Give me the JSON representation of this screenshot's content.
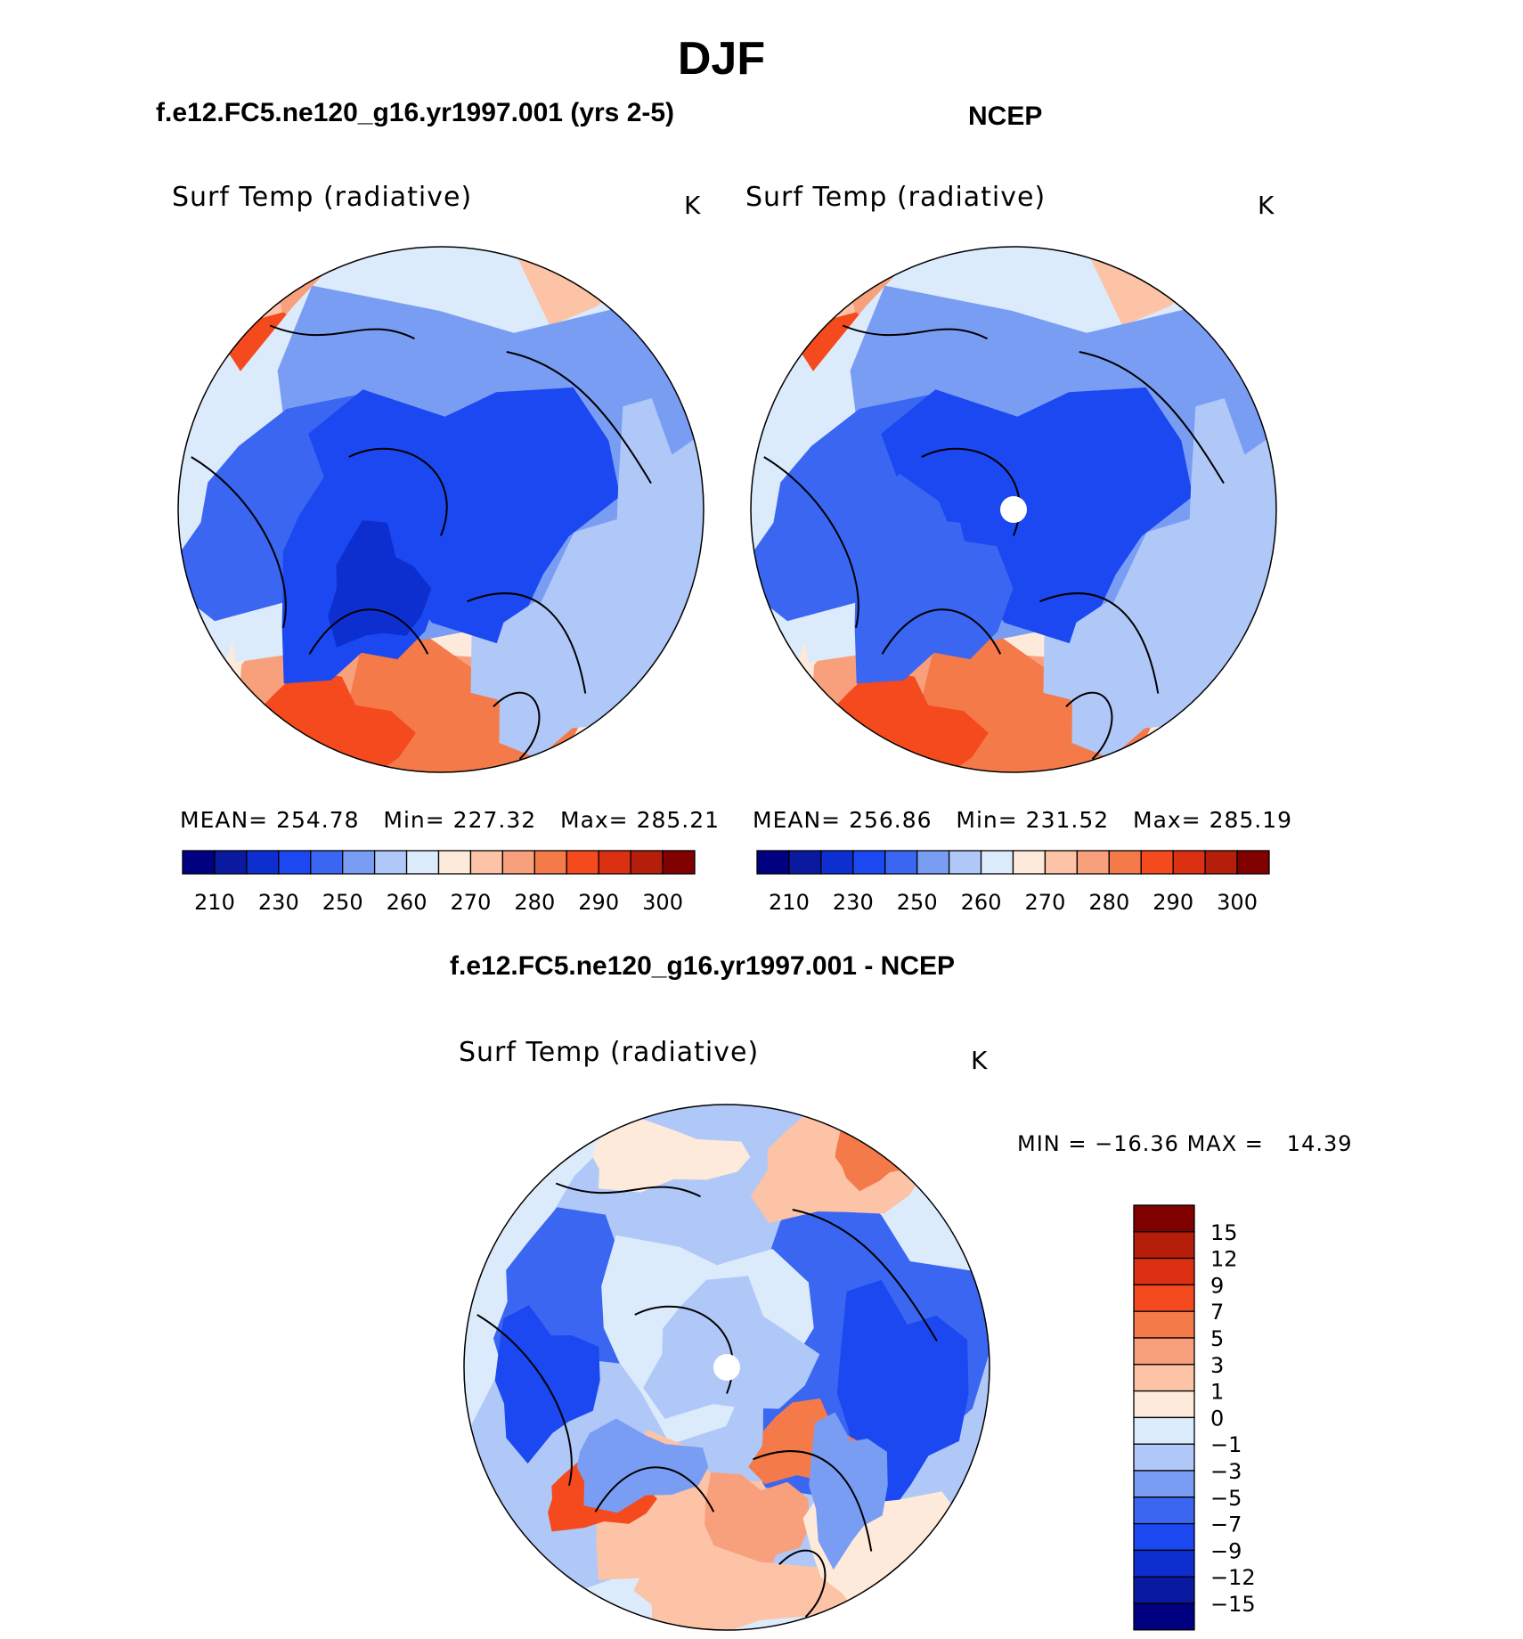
{
  "season": "DJF",
  "left_title": "f.e12.FC5.ne120_g16.yr1997.001 (yrs 2-5)",
  "right_title": "NCEP",
  "diff_title": "f.e12.FC5.ne120_g16.yr1997.001 - NCEP",
  "colors": {
    "abs_levels": [
      "#000080",
      "#0a1aa0",
      "#0e2fd0",
      "#1b48f0",
      "#3a66f2",
      "#7a9df4",
      "#b0c8f8",
      "#dcebfc",
      "#feeadb",
      "#fcc3a6",
      "#f8a07c",
      "#f47a4a",
      "#f44a1e",
      "#dc3012",
      "#b41e0a",
      "#800000"
    ],
    "diff_levels": [
      "#000080",
      "#0a1aa0",
      "#0e2fd0",
      "#1b48f0",
      "#3a66f2",
      "#7a9df4",
      "#b0c8f8",
      "#dcebfc",
      "#feeadb",
      "#fcc3a6",
      "#f8a07c",
      "#f47a4a",
      "#f44a1e",
      "#dc3012",
      "#b41e0a",
      "#800000"
    ]
  },
  "chart_data": [
    {
      "type": "heatmap",
      "projection": "north polar stereographic",
      "title": "f.e12.FC5.ne120_g16.yr1997.001 (yrs 2-5)",
      "variable": "Surf Temp (radiative)",
      "units": "K",
      "mean_label": "MEAN=",
      "mean": "254.78",
      "min_label": "Min=",
      "min": "227.32",
      "max_label": "Max=",
      "max": "285.21",
      "colorbar_ticks": [
        "210",
        "230",
        "250",
        "260",
        "270",
        "280",
        "290",
        "300"
      ]
    },
    {
      "type": "heatmap",
      "projection": "north polar stereographic",
      "title": "NCEP",
      "variable": "Surf Temp (radiative)",
      "units": "K",
      "mean_label": "MEAN=",
      "mean": "256.86",
      "min_label": "Min=",
      "min": "231.52",
      "max_label": "Max=",
      "max": "285.19",
      "colorbar_ticks": [
        "210",
        "230",
        "250",
        "260",
        "270",
        "280",
        "290",
        "300"
      ]
    },
    {
      "type": "heatmap",
      "projection": "north polar stereographic",
      "title": "f.e12.FC5.ne120_g16.yr1997.001 - NCEP",
      "variable": "Surf Temp (radiative)",
      "units": "K",
      "min_label": "MIN =",
      "min": "−16.36",
      "max_label": "MAX =",
      "max": "14.39",
      "colorbar_ticks": [
        "15",
        "12",
        "9",
        "7",
        "5",
        "3",
        "1",
        "0",
        "−1",
        "−3",
        "−5",
        "−7",
        "−9",
        "−12",
        "−15"
      ]
    }
  ]
}
